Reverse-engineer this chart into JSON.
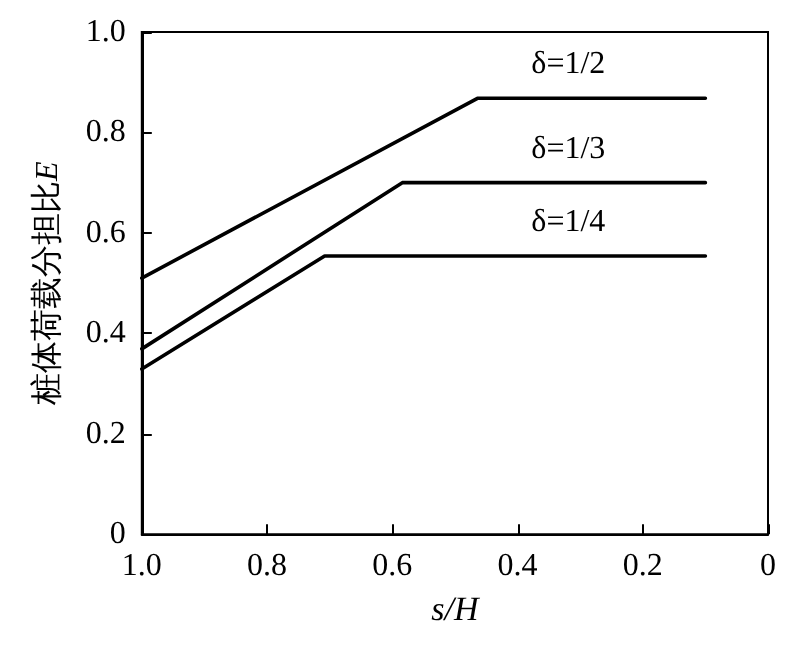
{
  "chart_data": {
    "type": "line",
    "xlabel": "s/H",
    "ylabel": "桩体荷载分担比E",
    "xlim": [
      1.0,
      0
    ],
    "xticks": [
      {
        "value": 1.0,
        "label": "1.0"
      },
      0.8,
      0.6,
      0.4,
      0.2,
      0
    ],
    "ylim": [
      0,
      1.0
    ],
    "yticks": [
      0,
      0.2,
      0.4,
      0.6,
      0.8,
      {
        "value": 1.0,
        "label": "1.0"
      }
    ],
    "grid": false,
    "legend": false,
    "marker": "none",
    "line_style": "solid",
    "series": [
      {
        "name": "δ=1/2",
        "color": "#000000",
        "x": [
          1.0,
          0.464,
          0.1
        ],
        "values": [
          0.51,
          0.868,
          0.868
        ]
      },
      {
        "name": "δ=1/3",
        "color": "#000000",
        "x": [
          1.0,
          0.584,
          0.1
        ],
        "values": [
          0.369,
          0.7,
          0.7
        ]
      },
      {
        "name": "δ=1/4",
        "color": "#000000",
        "x": [
          1.0,
          0.708,
          0.1
        ],
        "values": [
          0.329,
          0.554,
          0.554
        ]
      }
    ]
  }
}
